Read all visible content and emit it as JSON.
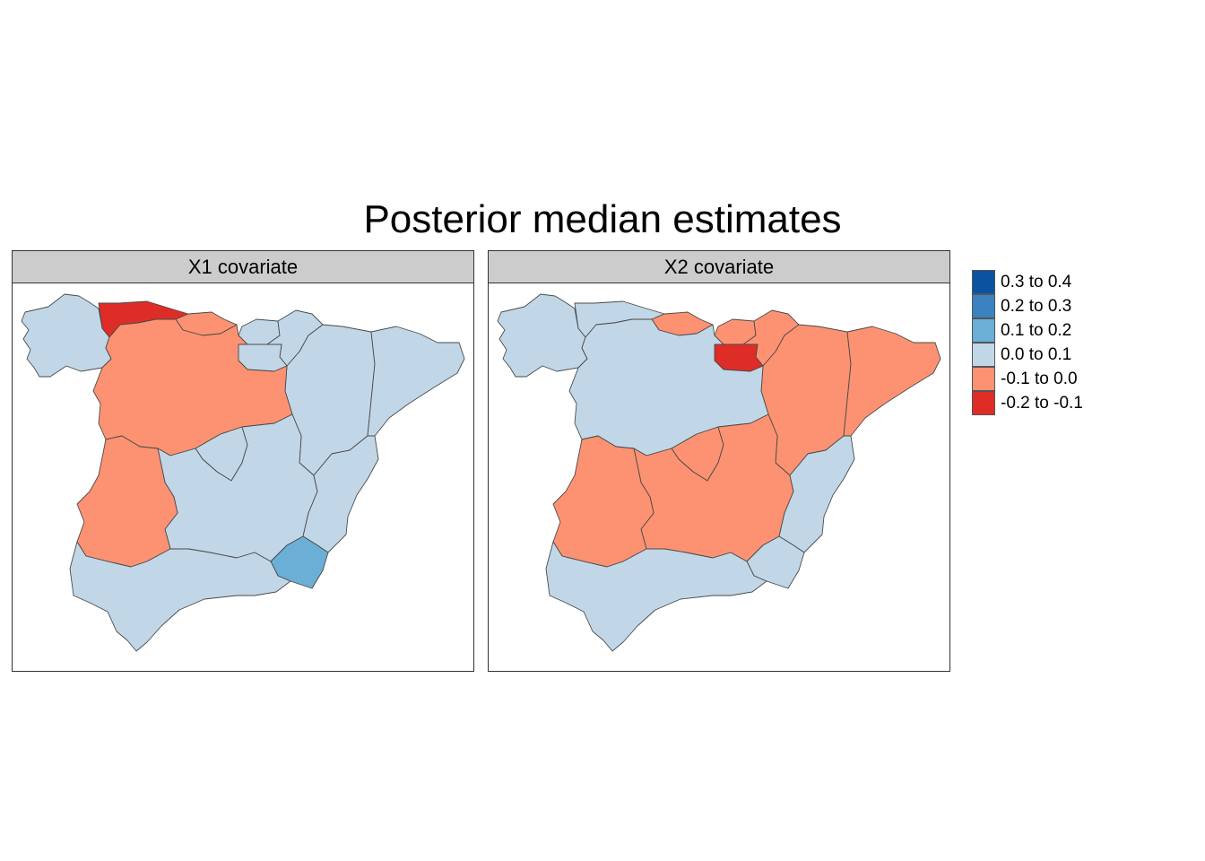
{
  "title": "Posterior median estimates",
  "colors": {
    "c_0_3_0_4": "#0b52a0",
    "c_0_2_0_3": "#3a82c0",
    "c_0_1_0_2": "#6baed6",
    "c_0_0_0_1": "#c1d7e7",
    "c_m0_1_0_0": "#fc9272",
    "c_m0_2_m0_1": "#de2d26"
  },
  "legend": {
    "items": [
      {
        "label": "0.3 to 0.4",
        "color": "#0b52a0"
      },
      {
        "label": "0.2 to 0.3",
        "color": "#3a82c0"
      },
      {
        "label": "0.1 to 0.2",
        "color": "#6baed6"
      },
      {
        "label": "0.0 to 0.1",
        "color": "#c1d7e7"
      },
      {
        "label": "-0.1 to 0.0",
        "color": "#fc9272"
      },
      {
        "label": "-0.2 to -0.1",
        "color": "#de2d26"
      }
    ]
  },
  "panels": [
    {
      "label": "X1 covariate",
      "regions": {
        "galicia": "0.0 to 0.1",
        "asturias": "-0.2 to -0.1",
        "cantabria": "-0.1 to 0.0",
        "pais_vasco": "0.0 to 0.1",
        "navarra": "0.0 to 0.1",
        "la_rioja": "0.0 to 0.1",
        "aragon": "0.0 to 0.1",
        "cataluna": "0.0 to 0.1",
        "castilla_leon": "-0.1 to 0.0",
        "madrid": "0.0 to 0.1",
        "castilla_la_mancha": "0.0 to 0.1",
        "extremadura": "-0.1 to 0.0",
        "valencia": "0.0 to 0.1",
        "murcia": "0.1 to 0.2",
        "andalucia": "0.0 to 0.1"
      }
    },
    {
      "label": "X2 covariate",
      "regions": {
        "galicia": "0.0 to 0.1",
        "asturias": "0.0 to 0.1",
        "cantabria": "-0.1 to 0.0",
        "pais_vasco": "-0.1 to 0.0",
        "navarra": "-0.1 to 0.0",
        "la_rioja": "-0.2 to -0.1",
        "aragon": "-0.1 to 0.0",
        "cataluna": "-0.1 to 0.0",
        "castilla_leon": "0.0 to 0.1",
        "madrid": "-0.1 to 0.0",
        "castilla_la_mancha": "-0.1 to 0.0",
        "extremadura": "-0.1 to 0.0",
        "valencia": "0.0 to 0.1",
        "murcia": "0.0 to 0.1",
        "andalucia": "0.0 to 0.1"
      }
    }
  ]
}
